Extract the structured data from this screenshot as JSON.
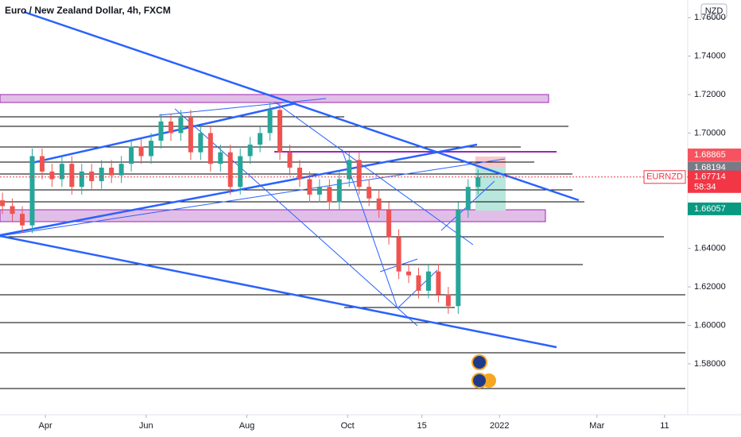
{
  "chart_data": {
    "type": "candlestick",
    "title": "Euro / New Zealand Dollar, 4h, FXCM",
    "currency": "NZD",
    "x": [
      64,
      70,
      76,
      82,
      88,
      94,
      100,
      106,
      112,
      118,
      124,
      130,
      136,
      142,
      148,
      154,
      160,
      166,
      172,
      178,
      184,
      190,
      196,
      202,
      208,
      214,
      220,
      226,
      232,
      238,
      244,
      250,
      256,
      262,
      268,
      274,
      280,
      286,
      292,
      298,
      304,
      310,
      316,
      322,
      328,
      334,
      340,
      346,
      352
    ],
    "open": [
      1.665,
      1.662,
      1.658,
      1.652,
      1.688,
      1.68,
      1.676,
      1.684,
      1.672,
      1.68,
      1.675,
      1.682,
      1.678,
      1.684,
      1.693,
      1.688,
      1.696,
      1.706,
      1.7,
      1.708,
      1.69,
      1.7,
      1.684,
      1.69,
      1.672,
      1.688,
      1.694,
      1.7,
      1.712,
      1.69,
      1.682,
      1.676,
      1.668,
      1.672,
      1.664,
      1.676,
      1.686,
      1.672,
      1.666,
      1.66,
      1.646,
      1.628,
      1.626,
      1.618,
      1.628,
      1.616,
      1.61,
      1.66,
      1.672
    ],
    "high": [
      1.669,
      1.666,
      1.662,
      1.692,
      1.692,
      1.684,
      1.688,
      1.688,
      1.684,
      1.684,
      1.686,
      1.686,
      1.688,
      1.697,
      1.697,
      1.7,
      1.71,
      1.71,
      1.712,
      1.712,
      1.704,
      1.704,
      1.694,
      1.694,
      1.692,
      1.698,
      1.704,
      1.716,
      1.716,
      1.694,
      1.686,
      1.68,
      1.676,
      1.676,
      1.68,
      1.69,
      1.69,
      1.676,
      1.67,
      1.664,
      1.65,
      1.632,
      1.63,
      1.632,
      1.632,
      1.62,
      1.664,
      1.676,
      1.681
    ],
    "low": [
      1.658,
      1.654,
      1.648,
      1.648,
      1.676,
      1.672,
      1.672,
      1.668,
      1.668,
      1.671,
      1.671,
      1.674,
      1.674,
      1.68,
      1.684,
      1.684,
      1.692,
      1.696,
      1.696,
      1.686,
      1.686,
      1.68,
      1.68,
      1.668,
      1.668,
      1.684,
      1.69,
      1.696,
      1.686,
      1.678,
      1.672,
      1.664,
      1.664,
      1.66,
      1.66,
      1.672,
      1.668,
      1.662,
      1.656,
      1.642,
      1.624,
      1.622,
      1.614,
      1.614,
      1.612,
      1.606,
      1.606,
      1.656,
      1.668
    ],
    "close": [
      1.662,
      1.658,
      1.652,
      1.688,
      1.68,
      1.676,
      1.684,
      1.672,
      1.68,
      1.675,
      1.682,
      1.678,
      1.684,
      1.693,
      1.688,
      1.696,
      1.706,
      1.7,
      1.708,
      1.69,
      1.7,
      1.684,
      1.69,
      1.672,
      1.688,
      1.694,
      1.7,
      1.712,
      1.69,
      1.682,
      1.676,
      1.668,
      1.672,
      1.664,
      1.676,
      1.686,
      1.672,
      1.666,
      1.66,
      1.646,
      1.628,
      1.626,
      1.618,
      1.628,
      1.616,
      1.61,
      1.66,
      1.672,
      1.677
    ],
    "up_color": "#26a69a",
    "down_color": "#ef5350",
    "xlim": [
      62.5,
      479
    ],
    "ylim": [
      1.5535,
      1.7692
    ],
    "xticks": [
      {
        "value": 90,
        "label": "Apr"
      },
      {
        "value": 151,
        "label": "Jun"
      },
      {
        "value": 212,
        "label": "Aug"
      },
      {
        "value": 273,
        "label": "Oct"
      },
      {
        "value": 318,
        "label": "15"
      },
      {
        "value": 365,
        "label": "2022"
      },
      {
        "value": 424,
        "label": "Mar"
      },
      {
        "value": 465,
        "label": "11"
      }
    ],
    "yticks": [
      {
        "value": 1.58,
        "label": "1.58000"
      },
      {
        "value": 1.6,
        "label": "1.60000"
      },
      {
        "value": 1.62,
        "label": "1.62000"
      },
      {
        "value": 1.64,
        "label": "1.64000"
      },
      {
        "value": 1.66,
        "label": "1.66000"
      },
      {
        "value": 1.68,
        "label": "1.68000"
      },
      {
        "value": 1.7,
        "label": "1.70000"
      },
      {
        "value": 1.72,
        "label": "1.72000"
      },
      {
        "value": 1.74,
        "label": "1.74000"
      },
      {
        "value": 1.76,
        "label": "1.76000"
      }
    ],
    "price_labels": [
      {
        "value": 1.68865,
        "color": "#f7525f"
      },
      {
        "value": 1.68194,
        "color": "#787b86"
      },
      {
        "value": 1.67714,
        "color": "#f23645",
        "countdown": "58:34",
        "symbol": "EURNZD",
        "dashed_line": true
      },
      {
        "value": 1.66057,
        "color": "#089981"
      }
    ]
  }
}
